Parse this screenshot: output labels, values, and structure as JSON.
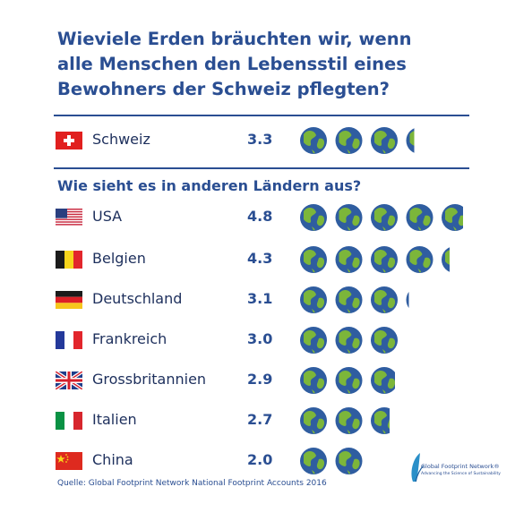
{
  "title": "Wieviele Erden bräuchten wir, wenn alle Menschen den Lebensstil eines Bewohners der Schweiz pflegten?",
  "subtitle": "Wie sieht es in anderen Ländern aus?",
  "source": "Quelle: Global Footprint Network National Footprint Accounts 2016",
  "logo": {
    "name": "Global Footprint Network®",
    "tagline": "Advancing the Science of Sustainability"
  },
  "colors": {
    "heading": "#2a4e92",
    "text": "#1d2f5c",
    "ocean": "#2f5da0",
    "land": "#7cb63a"
  },
  "chart_data": {
    "type": "bar",
    "unit_icon": "earth-icon",
    "highlight": {
      "country": "Schweiz",
      "value": 3.3,
      "value_label": "3.3",
      "flag": "switzerland-flag-icon"
    },
    "categories": [
      "USA",
      "Belgien",
      "Deutschland",
      "Frankreich",
      "Grossbritannien",
      "Italien",
      "China"
    ],
    "values": [
      4.8,
      4.3,
      3.1,
      3.0,
      2.9,
      2.7,
      2.0
    ],
    "value_labels": [
      "4.8",
      "4.3",
      "3.1",
      "3.0",
      "2.9",
      "2.7",
      "2.0"
    ],
    "flags": [
      "usa-flag-icon",
      "belgium-flag-icon",
      "germany-flag-icon",
      "france-flag-icon",
      "uk-flag-icon",
      "italy-flag-icon",
      "china-flag-icon"
    ]
  }
}
